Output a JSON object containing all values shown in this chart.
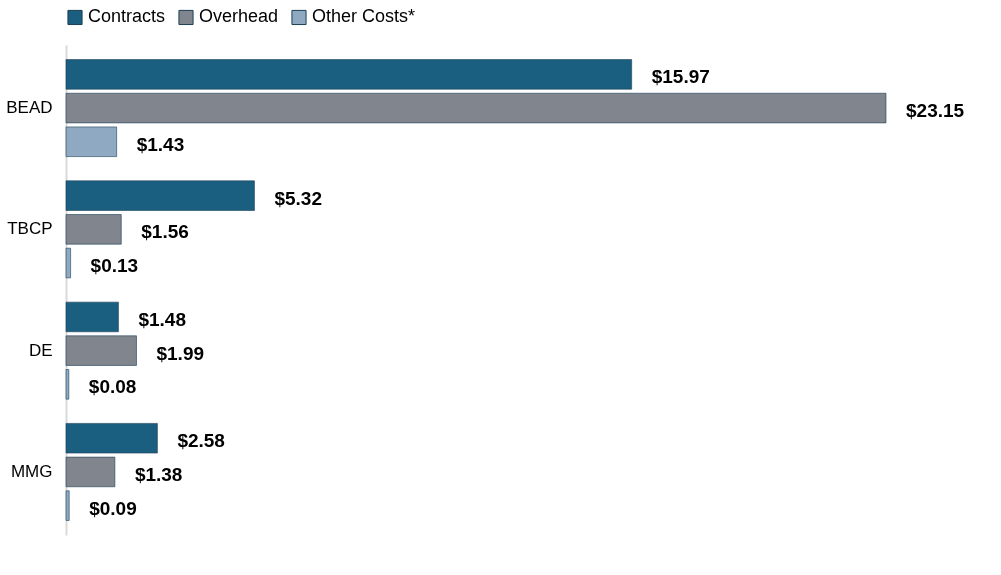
{
  "chart_data": {
    "type": "bar",
    "orientation": "horizontal",
    "categories": [
      "BEAD",
      "TBCP",
      "DE",
      "MMG"
    ],
    "series": [
      {
        "name": "Contracts",
        "color": "#1a5f80",
        "values": [
          15.97,
          5.32,
          1.48,
          2.58
        ],
        "value_labels": [
          "$15.97",
          "$5.32",
          "$1.48",
          "$2.58"
        ]
      },
      {
        "name": "Overhead",
        "color": "#80858e",
        "values": [
          23.15,
          1.56,
          1.99,
          1.38
        ],
        "value_labels": [
          "$23.15",
          "$1.56",
          "$1.99",
          "$1.38"
        ]
      },
      {
        "name": "Other Costs*",
        "color": "#8ea9c1",
        "values": [
          1.43,
          0.13,
          0.08,
          0.09
        ],
        "value_labels": [
          "$1.43",
          "$0.13",
          "$0.08",
          "$0.09"
        ]
      }
    ],
    "legend": "top"
  }
}
